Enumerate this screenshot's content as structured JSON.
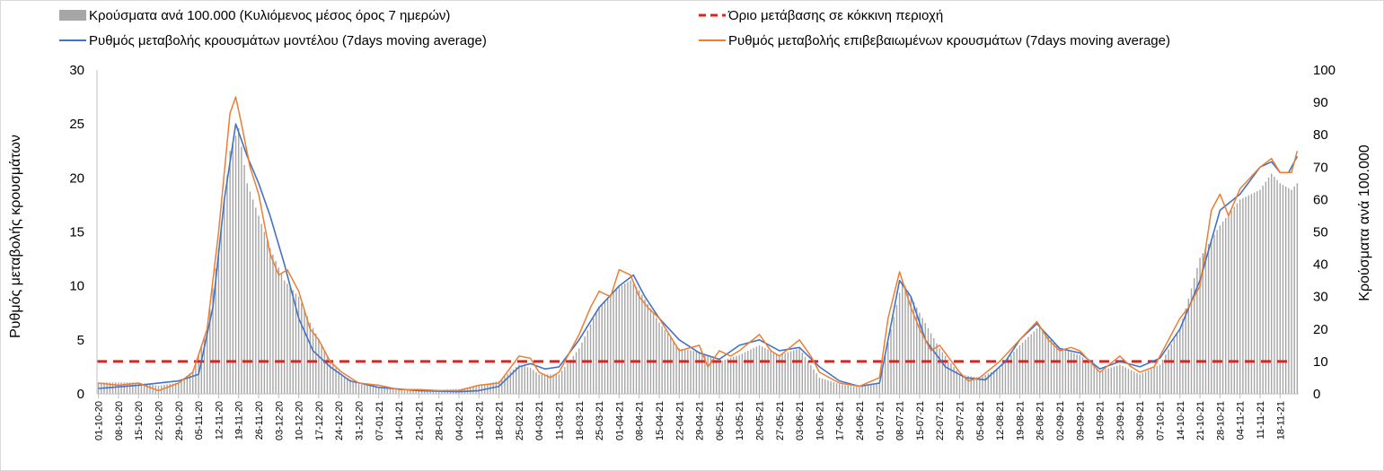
{
  "chart_data": {
    "type": "bar+line",
    "x_start": "2020-10-01",
    "x_end": "2021-11-24",
    "x_ticks": [
      "01-10-20",
      "08-10-20",
      "15-10-20",
      "22-10-20",
      "29-10-20",
      "05-11-20",
      "12-11-20",
      "19-11-20",
      "26-11-20",
      "03-12-20",
      "10-12-20",
      "17-12-20",
      "24-12-20",
      "31-12-20",
      "07-01-21",
      "14-01-21",
      "21-01-21",
      "28-01-21",
      "04-02-21",
      "11-02-21",
      "18-02-21",
      "25-02-21",
      "04-03-21",
      "11-03-21",
      "18-03-21",
      "25-03-21",
      "01-04-21",
      "08-04-21",
      "15-04-21",
      "22-04-21",
      "29-04-21",
      "06-05-21",
      "13-05-21",
      "20-05-21",
      "27-05-21",
      "03-06-21",
      "10-06-21",
      "17-06-21",
      "24-06-21",
      "01-07-21",
      "08-07-21",
      "15-07-21",
      "22-07-21",
      "29-07-21",
      "05-08-21",
      "12-08-21",
      "19-08-21",
      "26-08-21",
      "02-09-21",
      "09-09-21",
      "16-09-21",
      "23-09-21",
      "30-09-21",
      "07-10-21",
      "14-10-21",
      "21-10-21",
      "28-10-21",
      "04-11-21",
      "11-11-21",
      "18-11-21"
    ],
    "y_left": {
      "label": "Ρυθμός μεταβολής κρουσμάτων",
      "min": 0,
      "max": 30,
      "ticks": [
        0,
        5,
        10,
        15,
        20,
        25,
        30
      ]
    },
    "y_right": {
      "label": "Κρούσματα ανά 100.000",
      "min": 0,
      "max": 100,
      "ticks": [
        0,
        10,
        20,
        30,
        40,
        50,
        60,
        70,
        80,
        90,
        100
      ]
    },
    "legend": [
      {
        "label": "Κρούσματα ανά 100.000 (Κυλιόμενος μέσος όρος 7 ημερών)",
        "type": "bar",
        "color": "#a6a6a6"
      },
      {
        "label": "Όριο μετάβασης σε κόκκινη περιοχή",
        "type": "dashed",
        "color": "#e3211c"
      },
      {
        "label": "Ρυθμός μεταβολής κρουσμάτων μοντέλου (7days moving average)",
        "type": "line",
        "color": "#4472c4"
      },
      {
        "label": "Ρυθμός μεταβολής επιβεβαιωμένων κρουσμάτων (7days moving average)",
        "type": "line",
        "color": "#ed7d31"
      }
    ],
    "threshold_left": 3,
    "series": [
      {
        "name": "Κρούσματα ανά 100.000 (Κυλιόμενος μέσος όρος 7 ημερών)",
        "axis": "right",
        "type": "bar",
        "color": "#a6a6a6",
        "points": [
          [
            "2020-10-01",
            3.5
          ],
          [
            "2020-10-15",
            3.5
          ],
          [
            "2020-10-22",
            2.5
          ],
          [
            "2020-10-29",
            3.5
          ],
          [
            "2020-11-03",
            7
          ],
          [
            "2020-11-08",
            20
          ],
          [
            "2020-11-12",
            45
          ],
          [
            "2020-11-16",
            75
          ],
          [
            "2020-11-19",
            82
          ],
          [
            "2020-11-22",
            65
          ],
          [
            "2020-11-26",
            55
          ],
          [
            "2020-11-30",
            45
          ],
          [
            "2020-12-05",
            35
          ],
          [
            "2020-12-10",
            30
          ],
          [
            "2020-12-14",
            22
          ],
          [
            "2020-12-17",
            17
          ],
          [
            "2020-12-21",
            10
          ],
          [
            "2020-12-25",
            6
          ],
          [
            "2020-12-31",
            3
          ],
          [
            "2021-01-07",
            2
          ],
          [
            "2021-01-14",
            1.2
          ],
          [
            "2021-01-21",
            1.5
          ],
          [
            "2021-01-28",
            1.2
          ],
          [
            "2021-02-04",
            1.5
          ],
          [
            "2021-02-11",
            2.5
          ],
          [
            "2021-02-18",
            4
          ],
          [
            "2021-02-25",
            9
          ],
          [
            "2021-03-01",
            8
          ],
          [
            "2021-03-04",
            6
          ],
          [
            "2021-03-11",
            6
          ],
          [
            "2021-03-18",
            14
          ],
          [
            "2021-03-25",
            27
          ],
          [
            "2021-04-01",
            33
          ],
          [
            "2021-04-05",
            35
          ],
          [
            "2021-04-08",
            32
          ],
          [
            "2021-04-15",
            22
          ],
          [
            "2021-04-22",
            14
          ],
          [
            "2021-04-29",
            13
          ],
          [
            "2021-05-06",
            10
          ],
          [
            "2021-05-13",
            12
          ],
          [
            "2021-05-20",
            15
          ],
          [
            "2021-05-27",
            12
          ],
          [
            "2021-06-03",
            14
          ],
          [
            "2021-06-10",
            5
          ],
          [
            "2021-06-17",
            3
          ],
          [
            "2021-06-24",
            2
          ],
          [
            "2021-07-01",
            3.5
          ],
          [
            "2021-07-05",
            20
          ],
          [
            "2021-07-09",
            35
          ],
          [
            "2021-07-15",
            25
          ],
          [
            "2021-07-22",
            14
          ],
          [
            "2021-07-29",
            6
          ],
          [
            "2021-08-05",
            5
          ],
          [
            "2021-08-12",
            8
          ],
          [
            "2021-08-19",
            15
          ],
          [
            "2021-08-26",
            21
          ],
          [
            "2021-09-02",
            14
          ],
          [
            "2021-09-09",
            12
          ],
          [
            "2021-09-16",
            7
          ],
          [
            "2021-09-23",
            9
          ],
          [
            "2021-09-30",
            6
          ],
          [
            "2021-10-07",
            9
          ],
          [
            "2021-10-14",
            20
          ],
          [
            "2021-10-21",
            42
          ],
          [
            "2021-10-28",
            52
          ],
          [
            "2021-11-04",
            60
          ],
          [
            "2021-11-11",
            63
          ],
          [
            "2021-11-15",
            68
          ],
          [
            "2021-11-18",
            65
          ],
          [
            "2021-11-22",
            63
          ],
          [
            "2021-11-24",
            65
          ]
        ]
      },
      {
        "name": "Ρυθμός μεταβολής κρουσμάτων μοντέλου (7days moving average)",
        "axis": "left",
        "type": "line",
        "color": "#4472c4",
        "points": [
          [
            "2020-10-01",
            0.5
          ],
          [
            "2020-10-15",
            0.8
          ],
          [
            "2020-10-29",
            1.2
          ],
          [
            "2020-11-05",
            1.8
          ],
          [
            "2020-11-10",
            8
          ],
          [
            "2020-11-14",
            18
          ],
          [
            "2020-11-18",
            25
          ],
          [
            "2020-11-22",
            22
          ],
          [
            "2020-11-26",
            19.5
          ],
          [
            "2020-11-30",
            16.5
          ],
          [
            "2020-12-05",
            12
          ],
          [
            "2020-12-10",
            7
          ],
          [
            "2020-12-15",
            4
          ],
          [
            "2020-12-21",
            2.5
          ],
          [
            "2020-12-28",
            1.2
          ],
          [
            "2021-01-07",
            0.6
          ],
          [
            "2021-01-21",
            0.3
          ],
          [
            "2021-02-04",
            0.2
          ],
          [
            "2021-02-11",
            0.3
          ],
          [
            "2021-02-18",
            0.7
          ],
          [
            "2021-02-25",
            2.5
          ],
          [
            "2021-03-01",
            2.8
          ],
          [
            "2021-03-06",
            2.3
          ],
          [
            "2021-03-11",
            2.5
          ],
          [
            "2021-03-18",
            5
          ],
          [
            "2021-03-25",
            8
          ],
          [
            "2021-04-01",
            10
          ],
          [
            "2021-04-06",
            11
          ],
          [
            "2021-04-10",
            9
          ],
          [
            "2021-04-15",
            7
          ],
          [
            "2021-04-22",
            5
          ],
          [
            "2021-04-29",
            3.8
          ],
          [
            "2021-05-06",
            3.2
          ],
          [
            "2021-05-13",
            4.5
          ],
          [
            "2021-05-20",
            5
          ],
          [
            "2021-05-27",
            4
          ],
          [
            "2021-06-03",
            4.3
          ],
          [
            "2021-06-10",
            2.5
          ],
          [
            "2021-06-17",
            1.2
          ],
          [
            "2021-06-24",
            0.7
          ],
          [
            "2021-07-01",
            1
          ],
          [
            "2021-07-04",
            5
          ],
          [
            "2021-07-08",
            10.5
          ],
          [
            "2021-07-12",
            9
          ],
          [
            "2021-07-17",
            5
          ],
          [
            "2021-07-24",
            2.5
          ],
          [
            "2021-07-31",
            1.5
          ],
          [
            "2021-08-07",
            1.3
          ],
          [
            "2021-08-14",
            3
          ],
          [
            "2021-08-19",
            5
          ],
          [
            "2021-08-25",
            6.5
          ],
          [
            "2021-09-02",
            4.2
          ],
          [
            "2021-09-09",
            3.8
          ],
          [
            "2021-09-16",
            2.3
          ],
          [
            "2021-09-23",
            3
          ],
          [
            "2021-09-30",
            2.5
          ],
          [
            "2021-10-07",
            3.3
          ],
          [
            "2021-10-14",
            6
          ],
          [
            "2021-10-21",
            10.5
          ],
          [
            "2021-10-28",
            17
          ],
          [
            "2021-11-04",
            18.5
          ],
          [
            "2021-11-11",
            21
          ],
          [
            "2021-11-15",
            21.5
          ],
          [
            "2021-11-18",
            20.5
          ],
          [
            "2021-11-21",
            20.5
          ],
          [
            "2021-11-24",
            22
          ]
        ]
      },
      {
        "name": "Ρυθμός μεταβολής επιβεβαιωμένων κρουσμάτων (7days moving average)",
        "axis": "left",
        "type": "line",
        "color": "#ed7d31",
        "points": [
          [
            "2020-10-01",
            1
          ],
          [
            "2020-10-08",
            0.8
          ],
          [
            "2020-10-15",
            1
          ],
          [
            "2020-10-22",
            0.3
          ],
          [
            "2020-10-29",
            1
          ],
          [
            "2020-11-03",
            2
          ],
          [
            "2020-11-08",
            6
          ],
          [
            "2020-11-12",
            15
          ],
          [
            "2020-11-16",
            26
          ],
          [
            "2020-11-18",
            27.5
          ],
          [
            "2020-11-20",
            25
          ],
          [
            "2020-11-23",
            21
          ],
          [
            "2020-11-26",
            18.5
          ],
          [
            "2020-11-30",
            13
          ],
          [
            "2020-12-03",
            11
          ],
          [
            "2020-12-06",
            11.5
          ],
          [
            "2020-12-10",
            9.5
          ],
          [
            "2020-12-14",
            6
          ],
          [
            "2020-12-17",
            5
          ],
          [
            "2020-12-21",
            3
          ],
          [
            "2020-12-25",
            2
          ],
          [
            "2020-12-31",
            1
          ],
          [
            "2021-01-07",
            0.8
          ],
          [
            "2021-01-14",
            0.4
          ],
          [
            "2021-01-21",
            0.4
          ],
          [
            "2021-01-28",
            0.3
          ],
          [
            "2021-02-04",
            0.3
          ],
          [
            "2021-02-11",
            0.8
          ],
          [
            "2021-02-18",
            1
          ],
          [
            "2021-02-25",
            3.5
          ],
          [
            "2021-03-01",
            3.3
          ],
          [
            "2021-03-04",
            2
          ],
          [
            "2021-03-08",
            1.5
          ],
          [
            "2021-03-11",
            2
          ],
          [
            "2021-03-18",
            5.5
          ],
          [
            "2021-03-22",
            8
          ],
          [
            "2021-03-25",
            9.5
          ],
          [
            "2021-03-29",
            9
          ],
          [
            "2021-04-01",
            11.5
          ],
          [
            "2021-04-05",
            11
          ],
          [
            "2021-04-08",
            9
          ],
          [
            "2021-04-11",
            8
          ],
          [
            "2021-04-15",
            7
          ],
          [
            "2021-04-22",
            4
          ],
          [
            "2021-04-29",
            4.5
          ],
          [
            "2021-05-02",
            2.5
          ],
          [
            "2021-05-06",
            4
          ],
          [
            "2021-05-10",
            3.5
          ],
          [
            "2021-05-13",
            4
          ],
          [
            "2021-05-20",
            5.5
          ],
          [
            "2021-05-24",
            4
          ],
          [
            "2021-05-27",
            3.5
          ],
          [
            "2021-06-03",
            5
          ],
          [
            "2021-06-07",
            3.5
          ],
          [
            "2021-06-10",
            2
          ],
          [
            "2021-06-17",
            1
          ],
          [
            "2021-06-24",
            0.7
          ],
          [
            "2021-07-01",
            1.5
          ],
          [
            "2021-07-04",
            7
          ],
          [
            "2021-07-08",
            11.3
          ],
          [
            "2021-07-12",
            8
          ],
          [
            "2021-07-15",
            6
          ],
          [
            "2021-07-19",
            4
          ],
          [
            "2021-07-22",
            4.5
          ],
          [
            "2021-07-29",
            2
          ],
          [
            "2021-08-01",
            1.2
          ],
          [
            "2021-08-05",
            1.5
          ],
          [
            "2021-08-12",
            3
          ],
          [
            "2021-08-19",
            5
          ],
          [
            "2021-08-25",
            6.7
          ],
          [
            "2021-08-29",
            5
          ],
          [
            "2021-09-02",
            4
          ],
          [
            "2021-09-06",
            4.3
          ],
          [
            "2021-09-09",
            4
          ],
          [
            "2021-09-16",
            2
          ],
          [
            "2021-09-23",
            3.5
          ],
          [
            "2021-09-27",
            2.5
          ],
          [
            "2021-09-30",
            2
          ],
          [
            "2021-10-05",
            2.5
          ],
          [
            "2021-10-07",
            3.5
          ],
          [
            "2021-10-14",
            7
          ],
          [
            "2021-10-17",
            8
          ],
          [
            "2021-10-21",
            10
          ],
          [
            "2021-10-25",
            17
          ],
          [
            "2021-10-28",
            18.5
          ],
          [
            "2021-10-31",
            16.5
          ],
          [
            "2021-11-04",
            19
          ],
          [
            "2021-11-11",
            21
          ],
          [
            "2021-11-15",
            21.8
          ],
          [
            "2021-11-18",
            20.5
          ],
          [
            "2021-11-22",
            20.5
          ],
          [
            "2021-11-24",
            22.5
          ]
        ]
      }
    ]
  }
}
